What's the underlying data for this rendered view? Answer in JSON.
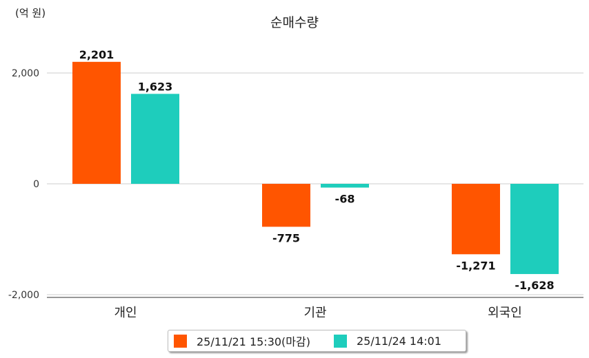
{
  "chart_data": {
    "type": "bar",
    "title": "순매수량",
    "ylabel": "(억 원)",
    "xlabel": "",
    "categories": [
      "개인",
      "기관",
      "외국인"
    ],
    "series": [
      {
        "name": "25/11/21 15:30(마감)",
        "color": "#ff5500",
        "values": [
          2201,
          -775,
          -1271
        ],
        "labels": [
          "2,201",
          "-775",
          "-1,271"
        ]
      },
      {
        "name": "25/11/24 14:01",
        "color": "#1ecdbc",
        "values": [
          1623,
          -68,
          -1628
        ],
        "labels": [
          "1,623",
          "-68",
          "-1,628"
        ]
      }
    ],
    "ylim": [
      -2000,
      2200
    ],
    "yticks": [
      2000,
      0,
      -2000
    ],
    "ytick_labels": [
      "2,000",
      "0",
      "-2,000"
    ],
    "grid": true,
    "legend": "bottom"
  }
}
